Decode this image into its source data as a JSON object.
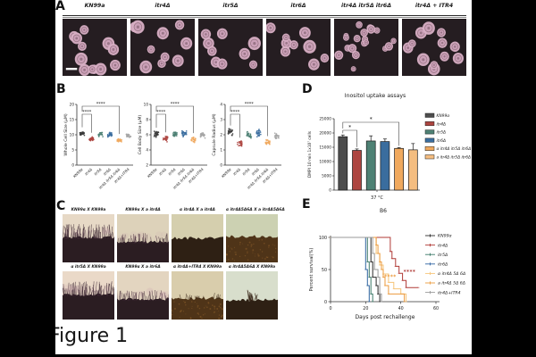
{
  "figure_label": "Figure 1",
  "panels": {
    "A": {
      "letter": "A",
      "scale_bar": true,
      "images": [
        {
          "label": "KN99a",
          "cells": 12,
          "small": false
        },
        {
          "label": "itr4Δ",
          "cells": 10,
          "small": false
        },
        {
          "label": "itr5Δ",
          "cells": 9,
          "small": false
        },
        {
          "label": "itr6Δ",
          "cells": 9,
          "small": false
        },
        {
          "label": "itr4Δ itr5Δ itr6Δ",
          "cells": 19,
          "small": true
        },
        {
          "label": "itr4Δ + ITR4",
          "cells": 12,
          "small": false
        }
      ]
    },
    "B": {
      "letter": "B"
    },
    "C": {
      "letter": "C",
      "images": [
        {
          "label": "KN99α  X KN99a",
          "style": "hyphae-dense",
          "bg": "#e7d9c6"
        },
        {
          "label": "KN99α X a itr4Δ",
          "style": "hyphae-medium",
          "bg": "#ddd2ba"
        },
        {
          "label": "α itr4Δ X a itr4Δ",
          "style": "smooth",
          "bg": "#d5cfae"
        },
        {
          "label": "α itr4Δ5Δ6Δ X a itr4Δ5Δ6Δ",
          "style": "smooth-gravel",
          "bg": "#ccd1b2"
        },
        {
          "label": "α itr5Δ  X KN99a",
          "style": "hyphae-dense",
          "bg": "#ead9c8"
        },
        {
          "label": "KN99α  X a itr6Δ",
          "style": "hyphae-medium",
          "bg": "#e3d5c0"
        },
        {
          "label": "α itr4Δ+ITR4 X KN99a",
          "style": "sparse-gravel",
          "bg": "#d9cdac"
        },
        {
          "label": "α itr4Δ5Δ6Δ X KN99a",
          "style": "sparse-tuft",
          "bg": "#d8decc"
        }
      ]
    },
    "D": {
      "letter": "D"
    },
    "E": {
      "letter": "E"
    }
  },
  "chart_data": [
    {
      "type": "scatter",
      "panel": "B-left",
      "ylabel": "Whole Cell Size (μM)",
      "ylim": [
        0,
        20
      ],
      "yticks": [
        0,
        5,
        10,
        15,
        20
      ],
      "categories": [
        "KN99α",
        "itr4Δ",
        "itr5Δ",
        "itr6Δ",
        "itr4Δ itr5Δ itr6Δ",
        "itr4Δ+ITR4"
      ],
      "values": [
        10.4,
        8.6,
        10.1,
        10.1,
        8.2,
        9.7
      ],
      "spread": [
        0.8,
        0.7,
        0.9,
        1.0,
        0.7,
        0.8
      ],
      "colors": [
        "#3a3a3a",
        "#ad4540",
        "#4e8174",
        "#3a6d9e",
        "#f0a95e",
        "#a5a5a5"
      ],
      "significance": [
        {
          "from": 0,
          "to": 1,
          "label": "****"
        },
        {
          "from": 0,
          "to": 4,
          "label": "****"
        }
      ]
    },
    {
      "type": "scatter",
      "panel": "B-middle",
      "ylabel": "Cell Body Size (μM)",
      "ylim": [
        2,
        10
      ],
      "yticks": [
        2,
        4,
        6,
        8,
        10
      ],
      "categories": [
        "KN99α",
        "itr4Δ",
        "itr5Δ",
        "itr6Δ",
        "itr4Δ itr5Δ itr6Δ",
        "itr4Δ+ITR4"
      ],
      "values": [
        6.1,
        5.5,
        6.1,
        6.2,
        5.4,
        6.0
      ],
      "spread": [
        0.5,
        0.45,
        0.5,
        0.55,
        0.6,
        0.5
      ],
      "colors": [
        "#3a3a3a",
        "#ad4540",
        "#4e8174",
        "#3a6d9e",
        "#f0a95e",
        "#a5a5a5"
      ],
      "significance": [
        {
          "from": 0,
          "to": 1,
          "label": "****"
        },
        {
          "from": 0,
          "to": 4,
          "label": "****"
        }
      ]
    },
    {
      "type": "scatter",
      "panel": "B-right",
      "ylabel": "Capsule Radius (μM)",
      "ylim": [
        0,
        4
      ],
      "yticks": [
        0,
        1,
        2,
        3,
        4
      ],
      "categories": [
        "KN99α",
        "itr4Δ",
        "itr5Δ",
        "itr6Δ",
        "itr4Δ itr5Δ itr6Δ",
        "itr4Δ+ITR4"
      ],
      "values": [
        2.2,
        1.4,
        2.0,
        2.1,
        1.5,
        1.9
      ],
      "spread": [
        0.28,
        0.22,
        0.32,
        0.3,
        0.24,
        0.26
      ],
      "colors": [
        "#3a3a3a",
        "#ad4540",
        "#4e8174",
        "#3a6d9e",
        "#f0a95e",
        "#a5a5a5"
      ],
      "significance": [
        {
          "from": 0,
          "to": 1,
          "label": "****"
        },
        {
          "from": 0,
          "to": 4,
          "label": "****"
        }
      ]
    },
    {
      "type": "bar",
      "panel": "D",
      "title": "Inositol uptake assays",
      "ylabel": "DMPI 10 min 1x10⁷ cells",
      "xlabel": "37 °C",
      "ylim": [
        0,
        25000
      ],
      "yticks": [
        0,
        5000,
        10000,
        15000,
        20000,
        25000
      ],
      "categories": [
        "KN99α",
        "itr4Δ",
        "itr5Δ",
        "itr6Δ",
        "α itr4Δ itr5Δ itr6Δ",
        "a itr4Δ itr5Δ itr6Δ"
      ],
      "values": [
        18700,
        13900,
        17200,
        17000,
        14600,
        14100
      ],
      "errors": [
        600,
        500,
        1800,
        900,
        300,
        2200
      ],
      "colors": [
        "#4d4d4d",
        "#ad4540",
        "#4e8174",
        "#3a6d9e",
        "#f0a95e",
        "#f4bd80"
      ],
      "legend_position": "right",
      "significance": [
        {
          "from": 0,
          "to": 1,
          "label": "*"
        },
        {
          "from": 0,
          "to": 4,
          "label": "*"
        }
      ]
    },
    {
      "type": "line",
      "panel": "E",
      "title": "B6",
      "ylabel": "Percent survival(%)",
      "xlabel": "Days post rechallenge",
      "xlim": [
        0,
        60
      ],
      "xticks": [
        0,
        20,
        40,
        60
      ],
      "ylim": [
        0,
        100
      ],
      "yticks": [
        0,
        50,
        100
      ],
      "legend_position": "right",
      "series": [
        {
          "name": "KN99α",
          "color": "#2b2b2b",
          "points": [
            [
              0,
              100
            ],
            [
              22,
              100
            ],
            [
              23,
              62
            ],
            [
              24,
              38
            ],
            [
              26,
              25
            ],
            [
              27,
              12
            ],
            [
              28,
              0
            ]
          ]
        },
        {
          "name": "itr4Δ",
          "color": "#b03a36",
          "points": [
            [
              0,
              100
            ],
            [
              33,
              100
            ],
            [
              34,
              78
            ],
            [
              35,
              67
            ],
            [
              37,
              55
            ],
            [
              39,
              44
            ],
            [
              41,
              33
            ],
            [
              43,
              22
            ],
            [
              50,
              22
            ]
          ]
        },
        {
          "name": "itr5Δ",
          "color": "#3c7a68",
          "points": [
            [
              0,
              100
            ],
            [
              21,
              100
            ],
            [
              21,
              62
            ],
            [
              22,
              38
            ],
            [
              23,
              12
            ],
            [
              24,
              0
            ]
          ]
        },
        {
          "name": "itr6Δ",
          "color": "#2f64a0",
          "points": [
            [
              0,
              100
            ],
            [
              19,
              100
            ],
            [
              20,
              50
            ],
            [
              21,
              25
            ],
            [
              22,
              0
            ]
          ]
        },
        {
          "name": "α itr4Δ 5Δ 6Δ",
          "color": "#f6c478",
          "points": [
            [
              0,
              100
            ],
            [
              24,
              100
            ],
            [
              26,
              75
            ],
            [
              28,
              57
            ],
            [
              30,
              43
            ],
            [
              33,
              30
            ],
            [
              36,
              20
            ],
            [
              40,
              12
            ],
            [
              43,
              0
            ]
          ]
        },
        {
          "name": "a itr4Δ 5Δ 6Δ",
          "color": "#ec9b3e",
          "points": [
            [
              0,
              100
            ],
            [
              25,
              100
            ],
            [
              26,
              88
            ],
            [
              27,
              75
            ],
            [
              28,
              62
            ],
            [
              29,
              50
            ],
            [
              30,
              38
            ],
            [
              31,
              25
            ],
            [
              33,
              12
            ],
            [
              41,
              12
            ],
            [
              42,
              0
            ]
          ]
        },
        {
          "name": "itr4Δ+ITR4",
          "color": "#9a9a9a",
          "points": [
            [
              0,
              100
            ],
            [
              23,
              100
            ],
            [
              24,
              75
            ],
            [
              25,
              50
            ],
            [
              27,
              38
            ],
            [
              28,
              12
            ],
            [
              29,
              0
            ]
          ]
        }
      ],
      "annotations": [
        {
          "text": "****",
          "color": "#b03a36",
          "x": 45,
          "y": 44
        },
        {
          "text": "****",
          "color": "#ec9b3e",
          "x": 34,
          "y": 36
        }
      ]
    }
  ]
}
